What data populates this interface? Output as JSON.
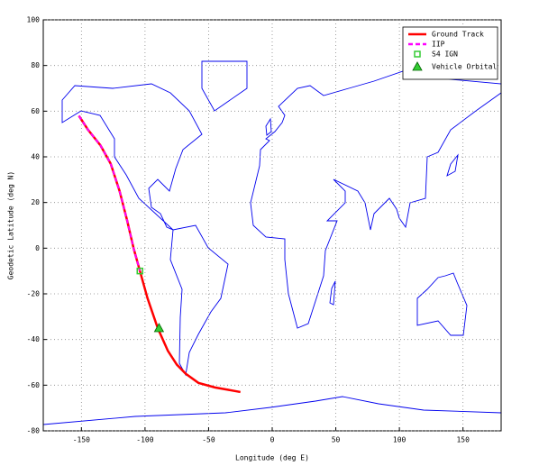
{
  "chart_data": {
    "type": "line",
    "x_label": "Longitude (deg E)",
    "y_label": "Geodetic Latitude (deg N)",
    "xlim": [
      -180,
      180
    ],
    "xticks": [
      -150,
      -100,
      -50,
      0,
      50,
      100,
      150
    ],
    "ylim": [
      -80,
      100
    ],
    "yticks": [
      -80,
      -60,
      -40,
      -20,
      0,
      20,
      40,
      60,
      80,
      100
    ],
    "grid": true,
    "legend": "upper right",
    "series": [
      {
        "name": "Ground Track",
        "color": "#ff0000",
        "style": "solid",
        "x": [
          -152,
          -145,
          -135,
          -127,
          -120,
          -114,
          -109,
          -104,
          -98,
          -90,
          -82,
          -75,
          -68,
          -58,
          -45,
          -35,
          -25
        ],
        "y": [
          58,
          52,
          45,
          37,
          25,
          12,
          0,
          -10,
          -22,
          -35,
          -45,
          -51,
          -55,
          -59,
          -61,
          -62,
          -63
        ]
      },
      {
        "name": "IIP",
        "color": "#ff00ff",
        "style": "dashed",
        "x": [
          -152,
          -145,
          -135,
          -127,
          -120,
          -114,
          -109,
          -104
        ],
        "y": [
          58,
          52,
          45,
          37,
          25,
          12,
          0,
          -10
        ]
      },
      {
        "name": "S4 IGN",
        "color": "#33cc33",
        "style": "square",
        "x": [
          -104
        ],
        "y": [
          -10
        ]
      },
      {
        "name": "Vehicle Orbital",
        "color": "#33cc33",
        "style": "triangle",
        "x": [
          -89
        ],
        "y": [
          -35
        ]
      }
    ]
  }
}
